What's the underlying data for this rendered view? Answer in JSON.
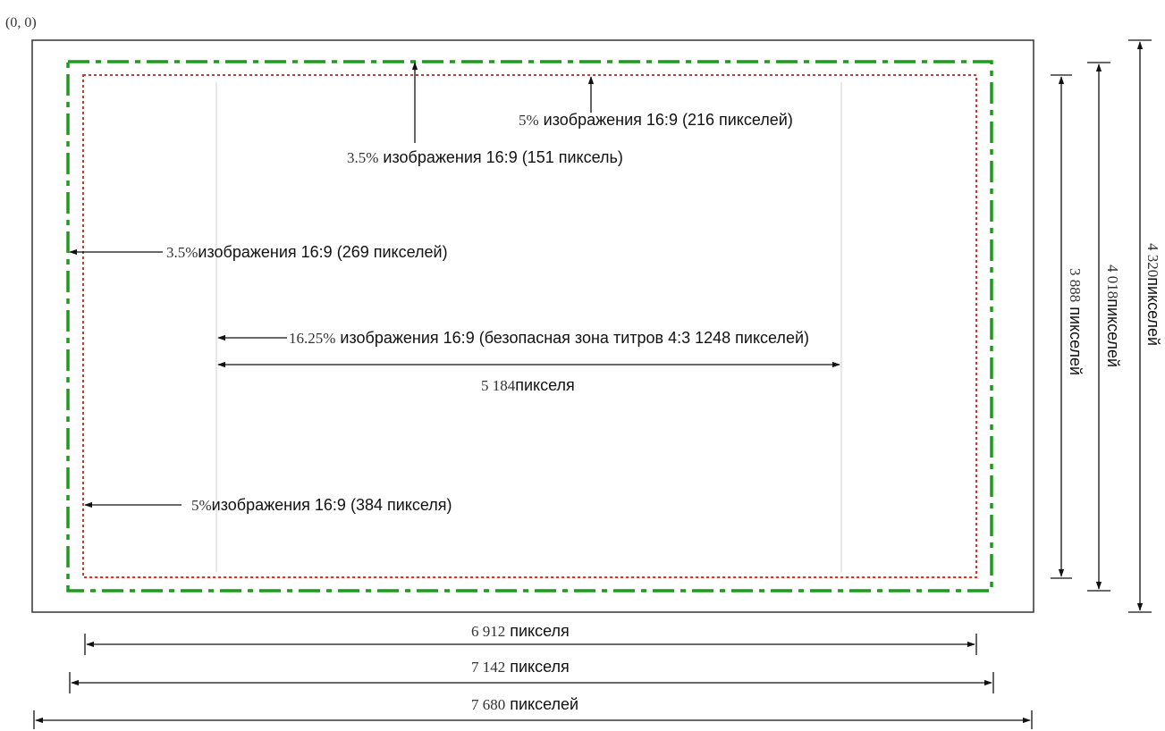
{
  "origin_label": "(0, 0)",
  "colors": {
    "frame": "#333333",
    "action_safe": "#1e9a1e",
    "title_safe": "#e0302a",
    "guide": "#d0d0d0",
    "arrow": "#111111"
  },
  "annotations": {
    "top_title_safe": {
      "num": "5%",
      "text": " изображения 16:9 (216 пикселей)"
    },
    "top_action_safe": {
      "num": "3.5%",
      "text": " изображения 16:9 (151 пиксель)"
    },
    "left_action_safe": {
      "num": "3.5%",
      "text": "изображения 16:9 (269 пикселей)"
    },
    "center_4x3": {
      "num": "16.25%",
      "text": " изображения 16:9 (безопасная зона титров 4:3  1248 пикселей)"
    },
    "center_width": {
      "num": "5 184",
      "text": "пикселя"
    },
    "left_title_safe": {
      "num": "5%",
      "text": "изображения 16:9 (384 пикселя)"
    }
  },
  "dimensions": {
    "bottom": [
      {
        "num": "6 912",
        "text": " пикселя"
      },
      {
        "num": "7 142",
        "text": " пикселя"
      },
      {
        "num": "7 680",
        "text": " пикселей"
      }
    ],
    "right": [
      {
        "num": "3 888",
        "text": " пикселей"
      },
      {
        "num": "4 018",
        "text": "пикселей"
      },
      {
        "num": "4 320",
        "text": "пикселей"
      }
    ]
  }
}
